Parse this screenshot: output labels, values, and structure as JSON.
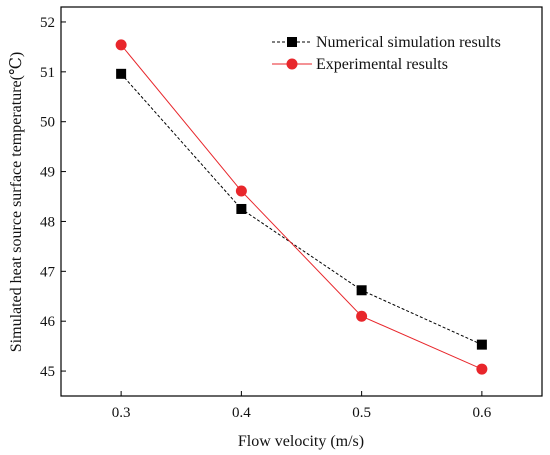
{
  "chart_data": {
    "type": "line",
    "xlabel": "Flow velocity (m/s)",
    "ylabel": "Simulated heat source surface temperature(℃)",
    "x": [
      0.3,
      0.4,
      0.5,
      0.6
    ],
    "xlim": [
      0.25,
      0.65
    ],
    "ylim": [
      44.5,
      52.3
    ],
    "xticks": [
      "0.3",
      "0.4",
      "0.5",
      "0.6"
    ],
    "yticks": [
      "45",
      "46",
      "47",
      "48",
      "49",
      "50",
      "51",
      "52"
    ],
    "legend_position": "top-right",
    "grid": false,
    "series": [
      {
        "name": "Numerical simulation results",
        "values": [
          50.96,
          48.25,
          46.62,
          45.53
        ],
        "color": "#000000",
        "line_style": "dotted",
        "marker": "square"
      },
      {
        "name": "Experimental results",
        "values": [
          51.54,
          48.61,
          46.1,
          45.04
        ],
        "color": "#e8262b",
        "line_style": "solid",
        "marker": "circle"
      }
    ]
  }
}
